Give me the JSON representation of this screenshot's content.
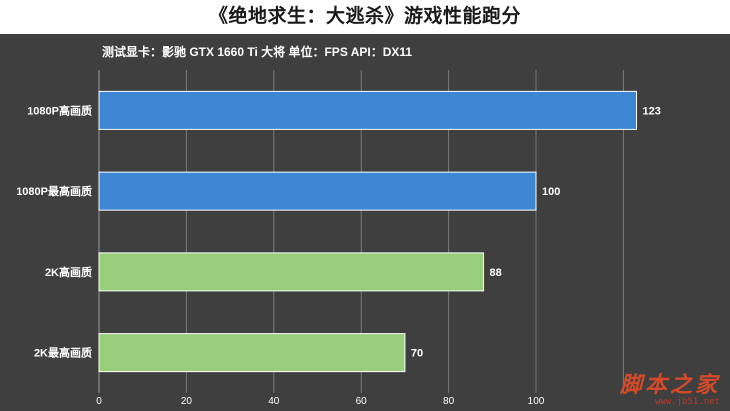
{
  "chart_data": {
    "type": "bar",
    "orientation": "horizontal",
    "title": "《绝地求生：大逃杀》游戏性能跑分",
    "subtitle": "测试显卡：影驰 GTX 1660 Ti 大将    单位：FPS    API：DX11",
    "categories": [
      "1080P高画质",
      "1080P最高画质",
      "2K高画质",
      "2K最高画质"
    ],
    "values": [
      123,
      100,
      88,
      70
    ],
    "bar_colors": [
      "#3d86d3",
      "#3d86d3",
      "#98cd79",
      "#98cd79"
    ],
    "xlim": [
      0,
      140
    ],
    "xticks": [
      "0",
      "20",
      "40",
      "60",
      "80",
      "100"
    ],
    "grid": true,
    "legend": "none"
  },
  "colors": {
    "background": "#3f3f3f",
    "title_band": "#ffffff",
    "gridline": "#7a7a7a",
    "text": "#ffffff"
  },
  "watermark": {
    "main": "脚本之家",
    "sub": "www.jb51.net"
  }
}
